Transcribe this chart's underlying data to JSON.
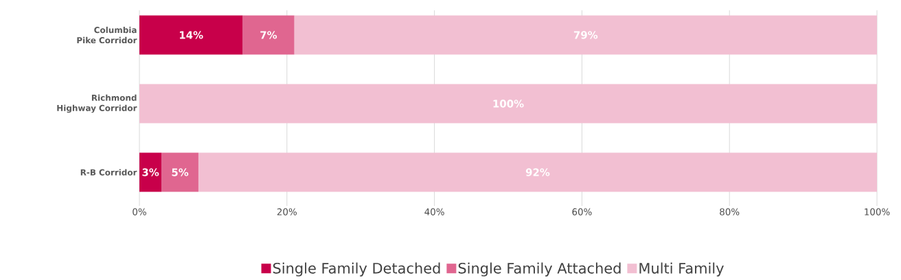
{
  "chart_data": {
    "type": "bar",
    "orientation": "horizontal",
    "stacked": true,
    "categories": [
      "Columbia Pike Corridor",
      "Richmond Highway Corridor",
      "R-B Corridor"
    ],
    "series": [
      {
        "name": "Single Family Detached",
        "color": "#c8004a",
        "values": [
          14,
          0,
          3
        ],
        "value_labels": [
          "14%",
          null,
          "3%"
        ]
      },
      {
        "name": "Single Family Attached",
        "color": "#e06690",
        "values": [
          7,
          0,
          5
        ],
        "value_labels": [
          "7%",
          null,
          "5%"
        ]
      },
      {
        "name": "Multi Family",
        "color": "#f2bfd2",
        "values": [
          79,
          100,
          92
        ],
        "value_labels": [
          "79%",
          "100%",
          "92%"
        ]
      }
    ],
    "xlim": [
      0,
      100
    ],
    "xticks": [
      {
        "value": 0,
        "label": "0%"
      },
      {
        "value": 20,
        "label": "20%"
      },
      {
        "value": 40,
        "label": "40%"
      },
      {
        "value": 60,
        "label": "60%"
      },
      {
        "value": 80,
        "label": "80%"
      },
      {
        "value": 100,
        "label": "100%"
      }
    ],
    "grid": "x",
    "legend": "bottom"
  }
}
